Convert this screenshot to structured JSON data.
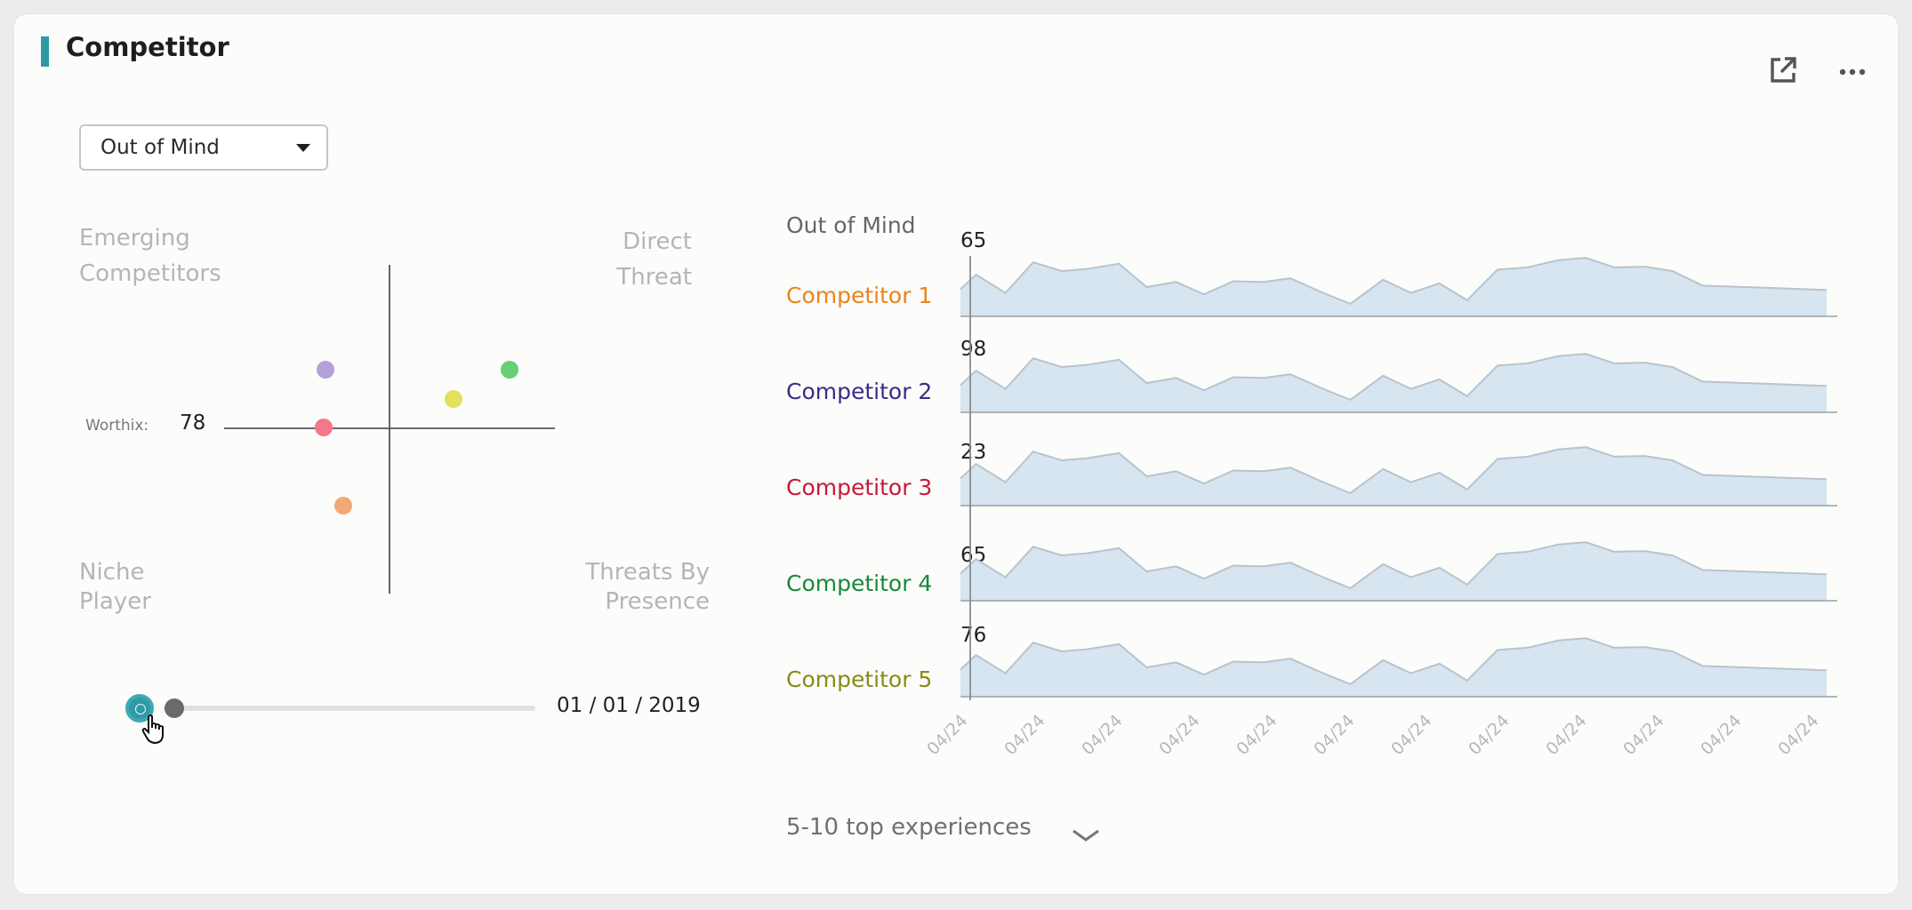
{
  "card": {
    "title": "Competitor",
    "open_external_icon": "external-link-icon",
    "more_icon": "more-horizontal-icon"
  },
  "filter": {
    "selected": "Out of Mind"
  },
  "quadrant": {
    "top_left": [
      "Emerging",
      "Competitors"
    ],
    "top_right": [
      "Direct",
      "Threat"
    ],
    "bottom_left": [
      "Niche",
      "Player"
    ],
    "bottom_right": [
      "Threats By",
      "Presence"
    ],
    "worthix_label": "Worthix:",
    "worthix_value": "78",
    "points": [
      {
        "color": "#b3a2d6"
      },
      {
        "color": "#66cf78"
      },
      {
        "color": "#e4e05a"
      },
      {
        "color": "#f2788a"
      },
      {
        "color": "#f2a872"
      }
    ]
  },
  "timeline": {
    "date": "01 / 01 / 2019",
    "position": 0
  },
  "series_panel": {
    "header": "Out of Mind",
    "rows": [
      {
        "label": "Competitor 1",
        "value": "65",
        "color": "#e8841a"
      },
      {
        "label": "Competitor 2",
        "value": "98",
        "color": "#3d2b88"
      },
      {
        "label": "Competitor 3",
        "value": "23",
        "color": "#c8173a"
      },
      {
        "label": "Competitor 4",
        "value": "65",
        "color": "#17893a"
      },
      {
        "label": "Competitor 5",
        "value": "76",
        "color": "#8a8a18"
      }
    ],
    "x_ticks": [
      "04/24",
      "04/24",
      "04/24",
      "04/24",
      "04/24",
      "04/24",
      "04/24",
      "04/24",
      "04/24",
      "04/24",
      "04/24",
      "04/24"
    ],
    "fill_color": "#d7e5f0",
    "line_color": "#b9c3cc"
  },
  "footer": {
    "experiences_label": "5-10 top experiences",
    "chevron_icon": "chevron-down-icon"
  }
}
